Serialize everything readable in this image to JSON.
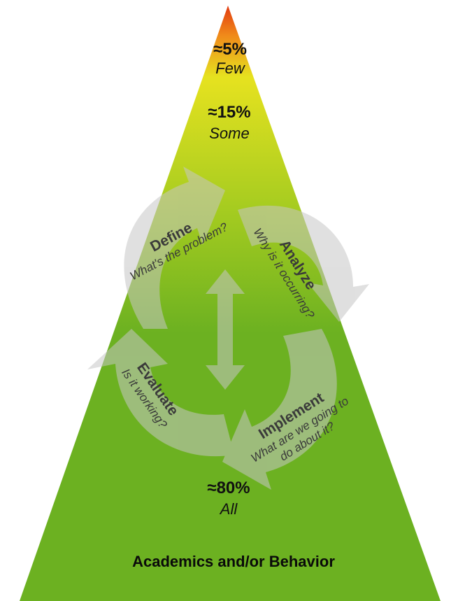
{
  "tiers": [
    {
      "percent": "≈5%",
      "label": "Few"
    },
    {
      "percent": "≈15%",
      "label": "Some"
    },
    {
      "percent": "≈80%",
      "label": "All"
    }
  ],
  "cycle": {
    "define": {
      "name": "Define",
      "question": "What's the problem?"
    },
    "analyze": {
      "name": "Analyze",
      "question": "Why is it occurring?"
    },
    "implement": {
      "name": "Implement",
      "question_line1": "What are we going to",
      "question_line2": "do about it?"
    },
    "evaluate": {
      "name": "Evaluate",
      "question": "Is it working?"
    }
  },
  "footer": "Academics and/or Behavior",
  "colors": {
    "tip_red": "#e23a10",
    "orange": "#f08a1a",
    "yellow": "#e6e21f",
    "green_light": "#a6cc20",
    "green": "#6cb121",
    "arrow_gray": "#c6c6c6"
  }
}
